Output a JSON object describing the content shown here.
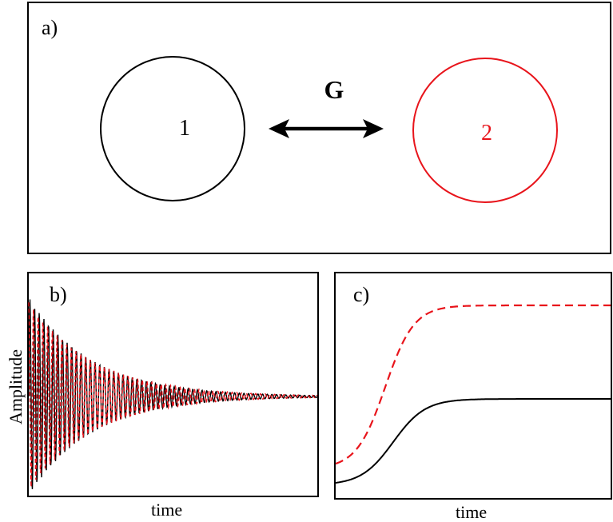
{
  "panel_a": {
    "label": "a)",
    "coupling_label": "G",
    "nodes": [
      {
        "label": "1",
        "color": "#000000"
      },
      {
        "label": "2",
        "color": "#e8141b"
      }
    ]
  },
  "panel_b": {
    "label": "b)",
    "ylabel": "Amplitude",
    "xlabel": "time"
  },
  "panel_c": {
    "label": "c)",
    "xlabel": "time"
  },
  "colors": {
    "black_series": "#000000",
    "red_series": "#e8141b"
  }
}
